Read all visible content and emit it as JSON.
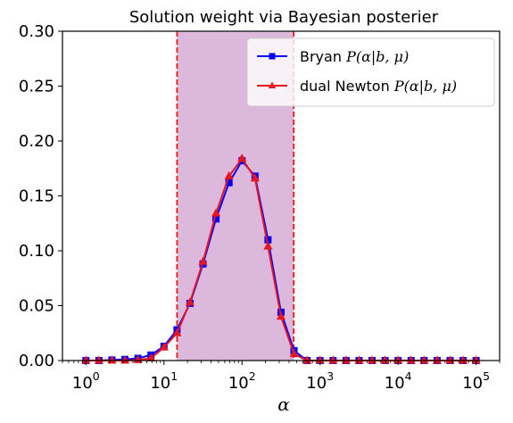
{
  "chart_data": {
    "type": "line",
    "title": "Solution weight via Bayesian posterier",
    "xlabel": "α",
    "ylabel": "",
    "xscale": "log",
    "xlim": [
      0.5,
      200000
    ],
    "ylim": [
      0.0,
      0.3
    ],
    "yticks": [
      0.0,
      0.05,
      0.1,
      0.15,
      0.2,
      0.25,
      0.3
    ],
    "ytick_labels": [
      "0.00",
      "0.05",
      "0.10",
      "0.15",
      "0.20",
      "0.25",
      "0.30"
    ],
    "xticks": [
      1,
      10,
      100,
      1000,
      10000,
      100000
    ],
    "xtick_labels": [
      {
        "base": "10",
        "exp": "0"
      },
      {
        "base": "10",
        "exp": "1"
      },
      {
        "base": "10",
        "exp": "2"
      },
      {
        "base": "10",
        "exp": "3"
      },
      {
        "base": "10",
        "exp": "4"
      },
      {
        "base": "10",
        "exp": "5"
      }
    ],
    "grid": false,
    "legend_position": "top-right",
    "shaded_region": {
      "x": [
        14.7,
        460
      ],
      "color": "#dcb8dc",
      "edge_color": "#e8141e"
    },
    "x": [
      1,
      1.468,
      2.154,
      3.162,
      4.642,
      6.813,
      10.0,
      14.68,
      21.54,
      31.62,
      46.42,
      68.13,
      100.0,
      146.8,
      215.4,
      316.2,
      464.2,
      681.3,
      1000,
      1468,
      2154,
      3162,
      4642,
      6813,
      10000,
      14678,
      21544,
      31623,
      46416,
      68129,
      100000
    ],
    "series": [
      {
        "name": "Bryan ",
        "name_math": "P(α|b, μ)",
        "color": "#0000ff",
        "marker": "square",
        "values": [
          0.0,
          0.0,
          0.0005,
          0.001,
          0.002,
          0.005,
          0.013,
          0.028,
          0.052,
          0.088,
          0.129,
          0.162,
          0.182,
          0.168,
          0.11,
          0.044,
          0.009,
          0.0,
          0.0,
          0.0,
          0.0,
          0.0,
          0.0,
          0.0,
          0.0,
          0.0,
          0.0,
          0.0,
          0.0,
          0.0,
          0.0
        ]
      },
      {
        "name": "dual Newton ",
        "name_math": "P(α|b, μ)",
        "color": "#e8141e",
        "marker": "triangle",
        "values": [
          0.0,
          0.0,
          0.0,
          0.0,
          0.0005,
          0.002,
          0.012,
          0.025,
          0.053,
          0.09,
          0.134,
          0.168,
          0.184,
          0.166,
          0.104,
          0.04,
          0.006,
          0.0,
          0.0,
          0.0,
          0.0,
          0.0,
          0.0,
          0.0,
          0.0,
          0.0,
          0.0,
          0.0,
          0.0,
          0.0,
          0.0
        ]
      }
    ]
  }
}
